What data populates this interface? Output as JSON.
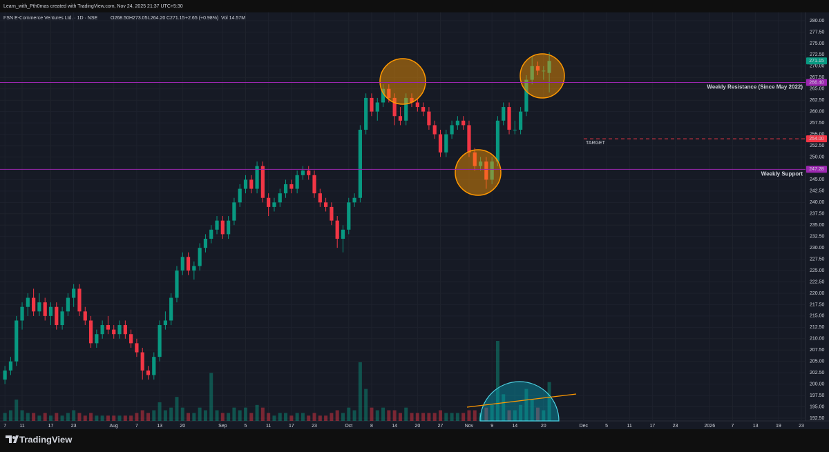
{
  "chart_data": {
    "type": "candlestick",
    "credit": "Learn_with_Pth0mas created with TradingView.com, Nov 24, 2025 21:37 UTC+5:30",
    "symbol": "FSN E-Commerce Ventures Ltd. · 1D · NSE",
    "ohlc_text": [
      "O268.50",
      "H273.05",
      "L264.20",
      "C271.15"
    ],
    "change_text": "+2.65 (+0.98%)",
    "volume_text": "Vol 14.57M",
    "brand": "TradingView",
    "up_color": "#089981",
    "down_color": "#f23645",
    "ohlc": [
      [
        201,
        204,
        200,
        203
      ],
      [
        203,
        206,
        202,
        205
      ],
      [
        205,
        215,
        204,
        214
      ],
      [
        214,
        218,
        212,
        217
      ],
      [
        217,
        220,
        215,
        219
      ],
      [
        219,
        221,
        215,
        216
      ],
      [
        216,
        220,
        215,
        218
      ],
      [
        218,
        219,
        214,
        215
      ],
      [
        215,
        218,
        213,
        217
      ],
      [
        217,
        218,
        212,
        213
      ],
      [
        213,
        217,
        212,
        216
      ],
      [
        216,
        220,
        215,
        219
      ],
      [
        219,
        222,
        217,
        221
      ],
      [
        221,
        222,
        215,
        216
      ],
      [
        216,
        217,
        213,
        214
      ],
      [
        214,
        215,
        208,
        209
      ],
      [
        209,
        212,
        208,
        211
      ],
      [
        211,
        214,
        210,
        213
      ],
      [
        213,
        215,
        211,
        212
      ],
      [
        212,
        213,
        210,
        211
      ],
      [
        211,
        214,
        210,
        213
      ],
      [
        213,
        214,
        210,
        211
      ],
      [
        211,
        212,
        208,
        209
      ],
      [
        209,
        210,
        206,
        207
      ],
      [
        207,
        208,
        201,
        203
      ],
      [
        203,
        204,
        201,
        202
      ],
      [
        202,
        207,
        201,
        206
      ],
      [
        206,
        214,
        205,
        213
      ],
      [
        213,
        216,
        212,
        214
      ],
      [
        214,
        220,
        213,
        219
      ],
      [
        219,
        226,
        218,
        225
      ],
      [
        225,
        229,
        224,
        228
      ],
      [
        228,
        229,
        224,
        225
      ],
      [
        225,
        227,
        223,
        226
      ],
      [
        226,
        231,
        225,
        230
      ],
      [
        230,
        233,
        229,
        232
      ],
      [
        232,
        235,
        231,
        234
      ],
      [
        234,
        237,
        233,
        236
      ],
      [
        236,
        237,
        232,
        233
      ],
      [
        233,
        237,
        232,
        236
      ],
      [
        236,
        241,
        235,
        240
      ],
      [
        240,
        244,
        239,
        243
      ],
      [
        243,
        246,
        242,
        245
      ],
      [
        245,
        246,
        242,
        243
      ],
      [
        243,
        249,
        242,
        248
      ],
      [
        248,
        249,
        240,
        241
      ],
      [
        241,
        242,
        237,
        239
      ],
      [
        239,
        241,
        238,
        240
      ],
      [
        240,
        243,
        239,
        242
      ],
      [
        242,
        245,
        241,
        244
      ],
      [
        244,
        245,
        242,
        243
      ],
      [
        243,
        247,
        242,
        246
      ],
      [
        246,
        248,
        245,
        247
      ],
      [
        247,
        248,
        245,
        246
      ],
      [
        246,
        247,
        241,
        242
      ],
      [
        242,
        243,
        239,
        240
      ],
      [
        240,
        241,
        238,
        239
      ],
      [
        239,
        240,
        235,
        236
      ],
      [
        236,
        237,
        230,
        232
      ],
      [
        232,
        235,
        229,
        234
      ],
      [
        234,
        241,
        233,
        240
      ],
      [
        240,
        242,
        239,
        241
      ],
      [
        241,
        257,
        240,
        256
      ],
      [
        256,
        264,
        255,
        263
      ],
      [
        263,
        264,
        259,
        260
      ],
      [
        260,
        263,
        258,
        262
      ],
      [
        262,
        266,
        261,
        265
      ],
      [
        265,
        266,
        262,
        263
      ],
      [
        263,
        264,
        257,
        259
      ],
      [
        259,
        261,
        257,
        258
      ],
      [
        258,
        264,
        257,
        263
      ],
      [
        263,
        264,
        261,
        262
      ],
      [
        262,
        263,
        260,
        261
      ],
      [
        261,
        262,
        259,
        260
      ],
      [
        260,
        261,
        256,
        257
      ],
      [
        257,
        258,
        254,
        255
      ],
      [
        255,
        256,
        250,
        251
      ],
      [
        251,
        256,
        250,
        255
      ],
      [
        255,
        258,
        254,
        257
      ],
      [
        257,
        259,
        256,
        258
      ],
      [
        258,
        259,
        256,
        257
      ],
      [
        257,
        258,
        250,
        251
      ],
      [
        251,
        252,
        247,
        248
      ],
      [
        248,
        250,
        247,
        249
      ],
      [
        249,
        250,
        243,
        245
      ],
      [
        245,
        250,
        244,
        249
      ],
      [
        249,
        259,
        248,
        258
      ],
      [
        258,
        262,
        257,
        261
      ],
      [
        261,
        262,
        255,
        256
      ],
      [
        256,
        258,
        255,
        256
      ],
      [
        256,
        261,
        255,
        260
      ],
      [
        260,
        268,
        259,
        267
      ],
      [
        267,
        272,
        266,
        270
      ],
      [
        270,
        271,
        268,
        269
      ],
      [
        269,
        270,
        267,
        269
      ],
      [
        268.5,
        273.05,
        264.2,
        271.15
      ]
    ],
    "volumes": [
      3,
      4,
      8,
      4,
      3,
      3,
      2,
      3,
      2,
      3,
      2,
      3,
      4,
      3,
      2,
      3,
      2,
      2,
      2,
      2,
      2,
      2,
      2,
      3,
      4,
      3,
      4,
      7,
      4,
      5,
      9,
      5,
      3,
      3,
      5,
      4,
      18,
      4,
      3,
      3,
      5,
      4,
      5,
      3,
      6,
      5,
      3,
      2,
      3,
      3,
      2,
      3,
      3,
      2,
      3,
      2,
      2,
      3,
      4,
      3,
      5,
      4,
      22,
      12,
      5,
      4,
      5,
      4,
      4,
      3,
      5,
      3,
      3,
      3,
      3,
      3,
      4,
      3,
      3,
      3,
      3,
      4,
      4,
      3,
      5,
      6,
      30,
      10,
      4,
      4,
      6,
      12,
      8,
      5,
      4,
      14.57
    ],
    "xlim": [
      -0.5,
      139.6
    ],
    "xticks": [
      {
        "value": 0,
        "label": "7"
      },
      {
        "value": 3,
        "label": "11"
      },
      {
        "value": 8,
        "label": "17"
      },
      {
        "value": 12,
        "label": "23"
      },
      {
        "value": 19,
        "label": "Aug"
      },
      {
        "value": 23,
        "label": "7"
      },
      {
        "value": 27,
        "label": "13"
      },
      {
        "value": 31,
        "label": "20"
      },
      {
        "value": 38,
        "label": "Sep"
      },
      {
        "value": 42,
        "label": "5"
      },
      {
        "value": 46,
        "label": "11"
      },
      {
        "value": 50,
        "label": "17"
      },
      {
        "value": 54,
        "label": "23"
      },
      {
        "value": 60,
        "label": "Oct"
      },
      {
        "value": 64,
        "label": "8"
      },
      {
        "value": 68,
        "label": "14"
      },
      {
        "value": 72,
        "label": "20"
      },
      {
        "value": 76,
        "label": "27"
      },
      {
        "value": 81,
        "label": "Nov"
      },
      {
        "value": 85,
        "label": "9"
      },
      {
        "value": 89,
        "label": "14"
      },
      {
        "value": 94,
        "label": "20"
      },
      {
        "value": 101,
        "label": "Dec"
      },
      {
        "value": 105,
        "label": "5"
      },
      {
        "value": 109,
        "label": "11"
      },
      {
        "value": 113,
        "label": "17"
      },
      {
        "value": 117,
        "label": "23"
      },
      {
        "value": 123,
        "label": "2026"
      },
      {
        "value": 127,
        "label": "7"
      },
      {
        "value": 131,
        "label": "13"
      },
      {
        "value": 135,
        "label": "19"
      },
      {
        "value": 139,
        "label": "23"
      }
    ],
    "ylim": [
      192.5,
      280
    ],
    "yticks": [
      {
        "value": 192.5,
        "label": "192.50"
      },
      {
        "value": 195,
        "label": "195.00"
      },
      {
        "value": 197.5,
        "label": "197.50"
      },
      {
        "value": 200,
        "label": "200.00"
      },
      {
        "value": 202.5,
        "label": "202.50"
      },
      {
        "value": 205,
        "label": "205.00"
      },
      {
        "value": 207.5,
        "label": "207.50"
      },
      {
        "value": 210,
        "label": "210.00"
      },
      {
        "value": 212.5,
        "label": "212.50"
      },
      {
        "value": 215,
        "label": "215.00"
      },
      {
        "value": 217.5,
        "label": "217.50"
      },
      {
        "value": 220,
        "label": "220.00"
      },
      {
        "value": 222.5,
        "label": "222.50"
      },
      {
        "value": 225,
        "label": "225.00"
      },
      {
        "value": 227.5,
        "label": "227.50"
      },
      {
        "value": 230,
        "label": "230.00"
      },
      {
        "value": 232.5,
        "label": "232.50"
      },
      {
        "value": 235,
        "label": "235.00"
      },
      {
        "value": 237.5,
        "label": "237.50"
      },
      {
        "value": 240,
        "label": "240.00"
      },
      {
        "value": 242.5,
        "label": "242.50"
      },
      {
        "value": 245,
        "label": "245.00"
      },
      {
        "value": 250,
        "label": "250.00"
      },
      {
        "value": 252.5,
        "label": "252.50"
      },
      {
        "value": 255,
        "label": "255.00"
      },
      {
        "value": 257.5,
        "label": "257.50"
      },
      {
        "value": 260,
        "label": "260.00"
      },
      {
        "value": 262.5,
        "label": "262.50"
      },
      {
        "value": 265,
        "label": "265.00"
      },
      {
        "value": 267.5,
        "label": "267.50"
      },
      {
        "value": 270,
        "label": "270.00"
      },
      {
        "value": 272.5,
        "label": "272.50"
      },
      {
        "value": 275,
        "label": "275.00"
      },
      {
        "value": 277.5,
        "label": "277.50"
      },
      {
        "value": 280,
        "label": "280.00"
      }
    ],
    "levels": [
      {
        "value": 266.4,
        "label": "266.40",
        "text": "Weekly Resistance (Since May 2022)",
        "color": "#9c27b0",
        "style": "solid"
      },
      {
        "value": 247.28,
        "label": "247.28",
        "text": "Weekly Support",
        "color": "#9c27b0",
        "style": "solid"
      },
      {
        "value": 254,
        "label": "254.00",
        "text": "TARGET",
        "color": "#f23645",
        "style": "dashed"
      }
    ]
  }
}
